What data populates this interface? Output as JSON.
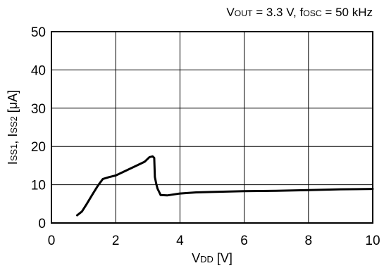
{
  "chart_data": {
    "type": "line",
    "subtitle": {
      "parts": [
        [
          "V",
          ""
        ],
        [
          "OUT",
          "sub"
        ],
        [
          " = 3.3 V, f",
          ""
        ],
        [
          "OSC",
          "sub"
        ],
        [
          " = 50 kHz",
          ""
        ]
      ]
    },
    "xlabel": {
      "parts": [
        [
          "V",
          ""
        ],
        [
          "DD",
          "sub"
        ],
        [
          " [V]",
          ""
        ]
      ]
    },
    "ylabel": {
      "parts": [
        [
          "I",
          ""
        ],
        [
          "SS1",
          "sub"
        ],
        [
          ", I",
          ""
        ],
        [
          "SS2",
          "sub"
        ],
        [
          " [μA]",
          ""
        ]
      ]
    },
    "xlim": [
      0,
      10
    ],
    "ylim": [
      0,
      50
    ],
    "xticks": [
      0,
      2,
      4,
      6,
      8,
      10
    ],
    "yticks": [
      0,
      10,
      20,
      30,
      40,
      50
    ],
    "grid": true,
    "series": [
      {
        "color": "#000000",
        "x": [
          0.8,
          0.95,
          1.1,
          1.3,
          1.45,
          1.6,
          1.8,
          2.0,
          2.3,
          2.6,
          2.9,
          3.05,
          3.15,
          3.2,
          3.22,
          3.26,
          3.3,
          3.4,
          3.6,
          4.0,
          4.5,
          5.0,
          6.0,
          7.0,
          8.0,
          9.0,
          10.0
        ],
        "y": [
          2.0,
          3.0,
          5.0,
          7.8,
          9.8,
          11.5,
          12.0,
          12.4,
          13.6,
          14.8,
          16.0,
          17.2,
          17.4,
          17.0,
          12.0,
          10.3,
          9.0,
          7.3,
          7.2,
          7.7,
          8.0,
          8.1,
          8.3,
          8.4,
          8.6,
          8.8,
          8.9
        ]
      }
    ]
  }
}
